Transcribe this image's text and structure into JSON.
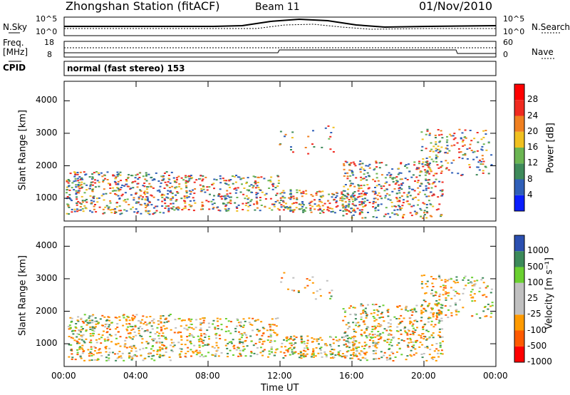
{
  "header": {
    "station": "Zhongshan Station (fitACF)",
    "beam": "Beam 11",
    "date": "01/Nov/2010"
  },
  "noise_panel": {
    "left_label": "N.Sky",
    "right_label": "N.Search",
    "ticks_left": [
      "10^5",
      "10^0"
    ],
    "ticks_right": [
      "10^5",
      "10^0"
    ]
  },
  "freq_panel": {
    "left_label_1": "Freq.",
    "left_label_2": "[MHz]",
    "right_label": "Nave",
    "ticks_left": [
      "18",
      "8"
    ],
    "ticks_right": [
      "60",
      "0"
    ]
  },
  "cpid": {
    "label": "CPID",
    "value": "normal (fast stereo) 153"
  },
  "colors": {
    "power_scale": [
      "#0a1eff",
      "#2f5fb8",
      "#3e8a5a",
      "#6bb552",
      "#f0c020",
      "#f08020",
      "#f02a20",
      "#ff0000"
    ],
    "velocity_scale": [
      "#ff0000",
      "#ff5a00",
      "#ff9a00",
      "#c0c0c0",
      "#c0c0c0",
      "#6ad030",
      "#3c8a5a",
      "#2b4fb0"
    ]
  },
  "chart_data": [
    {
      "type": "heatmap",
      "title": "",
      "ylabel": "Slant Range [km]",
      "xlabel": "",
      "x_ticks": [
        "00:00",
        "04:00",
        "08:00",
        "12:00",
        "16:00",
        "20:00",
        "00:00"
      ],
      "y_ticks": [
        "1000",
        "2000",
        "3000",
        "4000"
      ],
      "ylim": [
        300,
        4600
      ],
      "colorbar_label": "Power [dB]",
      "colorbar_ticks": [
        "4",
        "8",
        "12",
        "16",
        "20",
        "24",
        "28"
      ]
    },
    {
      "type": "heatmap",
      "title": "",
      "ylabel": "Slant Range [km]",
      "xlabel": "Time UT",
      "x_ticks": [
        "00:00",
        "04:00",
        "08:00",
        "12:00",
        "16:00",
        "20:00",
        "00:00"
      ],
      "y_ticks": [
        "1000",
        "2000",
        "3000",
        "4000"
      ],
      "ylim": [
        300,
        4600
      ],
      "colorbar_label": "Velocity [m s⁻¹]",
      "colorbar_ticks": [
        "1000",
        "500",
        "100",
        "25",
        "-25",
        "-100",
        "-500",
        "-1000"
      ]
    }
  ]
}
